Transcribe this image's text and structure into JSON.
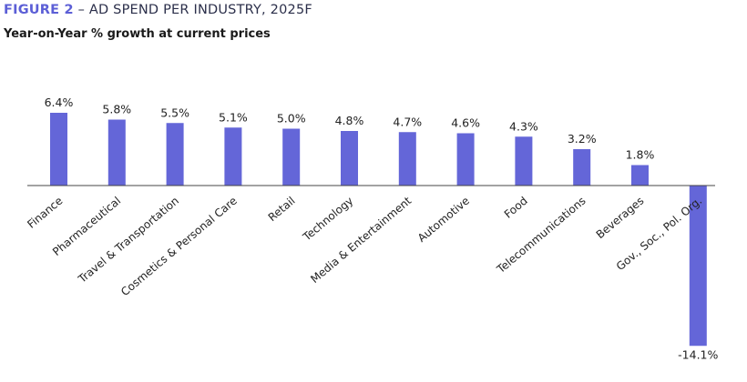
{
  "figure_label": "FIGURE 2",
  "title": "– AD SPEND PER INDUSTRY, 2025F",
  "subtitle": "Year-on-Year % growth at current prices",
  "colors": {
    "bar": "#6466d8",
    "figure_label": "#5c5fd6"
  },
  "chart_data": {
    "type": "bar",
    "title": "AD SPEND PER INDUSTRY, 2025F",
    "subtitle": "Year-on-Year % growth at current prices",
    "categories": [
      "Finance",
      "Pharmaceutical",
      "Travel & Transportation",
      "Cosmetics & Personal Care",
      "Retail",
      "Technology",
      "Media & Entertainment",
      "Automotive",
      "Food",
      "Telecommunications",
      "Beverages",
      "Gov., Soc., Pol. Org."
    ],
    "values": [
      6.4,
      5.8,
      5.5,
      5.1,
      5.0,
      4.8,
      4.7,
      4.6,
      4.3,
      3.2,
      1.8,
      -14.1
    ],
    "value_labels": [
      "6.4%",
      "5.8%",
      "5.5%",
      "5.1%",
      "5.0%",
      "4.8%",
      "4.7%",
      "4.6%",
      "4.3%",
      "3.2%",
      "1.8%",
      "-14.1%"
    ],
    "ylim": [
      -14.1,
      6.4
    ],
    "grid": false,
    "legend": "none"
  }
}
